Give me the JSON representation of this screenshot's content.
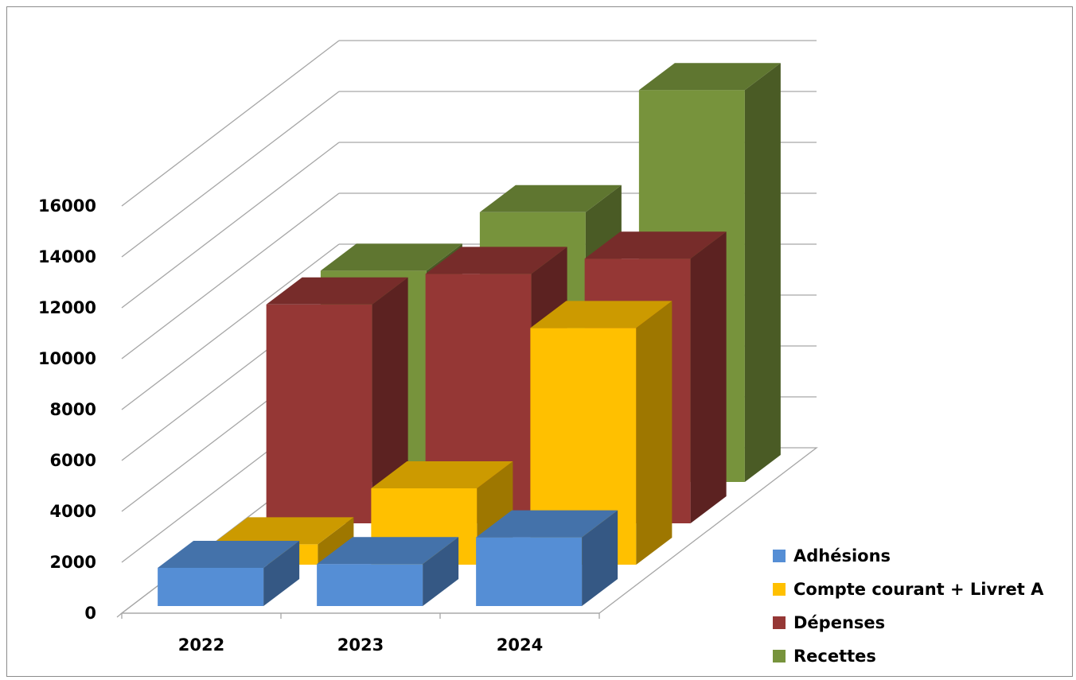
{
  "chart_data": {
    "type": "bar",
    "variant": "3d-clustered-column",
    "title": "",
    "xlabel": "",
    "ylabel": "",
    "categories": [
      "2022",
      "2023",
      "2024"
    ],
    "ylim": [
      0,
      16000
    ],
    "yticks": [
      0,
      2000,
      4000,
      6000,
      8000,
      10000,
      12000,
      14000,
      16000
    ],
    "grid": true,
    "legend_position": "right",
    "series": [
      {
        "name": "Adhésions",
        "color": "#558ED5",
        "values": [
          1500,
          1650,
          2700
        ]
      },
      {
        "name": "Compte courant + Livret A",
        "color": "#FFC000",
        "values": [
          800,
          3000,
          9300
        ]
      },
      {
        "name": "Dépenses",
        "color": "#953735",
        "values": [
          8600,
          9800,
          10400
        ]
      },
      {
        "name": "Recettes",
        "color": "#77933C",
        "values": [
          8300,
          10600,
          15400
        ]
      }
    ]
  }
}
